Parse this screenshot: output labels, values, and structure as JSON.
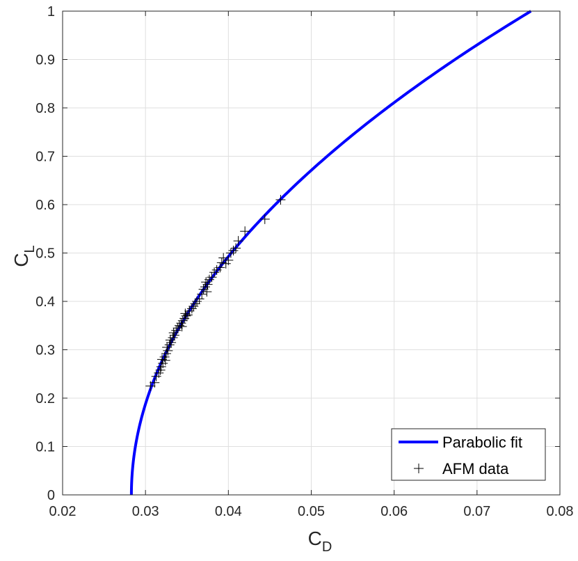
{
  "chart_data": {
    "type": "line",
    "xlabel": {
      "main": "C",
      "sub": "D"
    },
    "ylabel": {
      "main": "C",
      "sub": "L"
    },
    "xlim": [
      0.02,
      0.08
    ],
    "ylim": [
      0,
      1
    ],
    "xticks": [
      "0.02",
      "0.03",
      "0.04",
      "0.05",
      "0.06",
      "0.07",
      "0.08"
    ],
    "yticks": [
      "0",
      "0.1",
      "0.2",
      "0.3",
      "0.4",
      "0.5",
      "0.6",
      "0.7",
      "0.8",
      "0.9",
      "1"
    ],
    "xtick_values": [
      0.02,
      0.03,
      0.04,
      0.05,
      0.06,
      0.07,
      0.08
    ],
    "ytick_values": [
      0,
      0.1,
      0.2,
      0.3,
      0.4,
      0.5,
      0.6,
      0.7,
      0.8,
      0.9,
      1
    ],
    "grid": true,
    "legend": {
      "placement": "bottom-right"
    },
    "series": [
      {
        "name": "Parabolic fit",
        "kind": "line",
        "color": "#0000ff",
        "cd0": 0.0283,
        "k": 0.0482,
        "y_range": [
          0,
          1
        ]
      },
      {
        "name": "AFM data",
        "kind": "scatter",
        "marker": "plus",
        "color": "#000000",
        "points": [
          [
            0.0306,
            0.225
          ],
          [
            0.0311,
            0.232
          ],
          [
            0.0313,
            0.245
          ],
          [
            0.0316,
            0.252
          ],
          [
            0.0318,
            0.258
          ],
          [
            0.0319,
            0.265
          ],
          [
            0.0321,
            0.272
          ],
          [
            0.032,
            0.28
          ],
          [
            0.0323,
            0.285
          ],
          [
            0.0324,
            0.278
          ],
          [
            0.0325,
            0.292
          ],
          [
            0.0327,
            0.298
          ],
          [
            0.0326,
            0.305
          ],
          [
            0.0329,
            0.31
          ],
          [
            0.0331,
            0.315
          ],
          [
            0.033,
            0.32
          ],
          [
            0.0333,
            0.325
          ],
          [
            0.0335,
            0.33
          ],
          [
            0.0334,
            0.335
          ],
          [
            0.0337,
            0.34
          ],
          [
            0.0339,
            0.345
          ],
          [
            0.0341,
            0.35
          ],
          [
            0.0343,
            0.355
          ],
          [
            0.0345,
            0.36
          ],
          [
            0.0344,
            0.348
          ],
          [
            0.0347,
            0.365
          ],
          [
            0.0349,
            0.37
          ],
          [
            0.0348,
            0.375
          ],
          [
            0.0351,
            0.372
          ],
          [
            0.0353,
            0.38
          ],
          [
            0.0356,
            0.385
          ],
          [
            0.0358,
            0.39
          ],
          [
            0.036,
            0.395
          ],
          [
            0.0362,
            0.4
          ],
          [
            0.0365,
            0.405
          ],
          [
            0.0368,
            0.415
          ],
          [
            0.037,
            0.425
          ],
          [
            0.0372,
            0.43
          ],
          [
            0.0374,
            0.42
          ],
          [
            0.0375,
            0.435
          ],
          [
            0.0373,
            0.44
          ],
          [
            0.0377,
            0.445
          ],
          [
            0.038,
            0.45
          ],
          [
            0.0383,
            0.46
          ],
          [
            0.0386,
            0.465
          ],
          [
            0.039,
            0.47
          ],
          [
            0.0392,
            0.48
          ],
          [
            0.0394,
            0.49
          ],
          [
            0.0397,
            0.478
          ],
          [
            0.04,
            0.485
          ],
          [
            0.0403,
            0.5
          ],
          [
            0.0406,
            0.505
          ],
          [
            0.0409,
            0.51
          ],
          [
            0.0412,
            0.525
          ],
          [
            0.042,
            0.545
          ],
          [
            0.0444,
            0.57
          ],
          [
            0.0463,
            0.61
          ]
        ]
      }
    ]
  }
}
